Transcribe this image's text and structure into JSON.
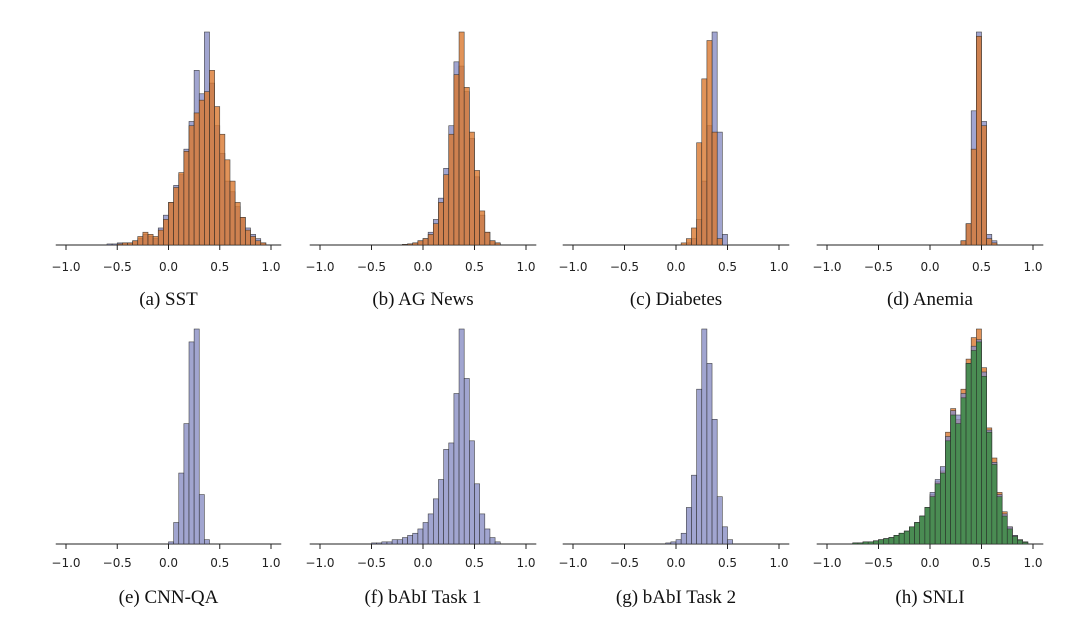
{
  "colors": {
    "blue": "#8a8fc4",
    "orange": "#d9782f",
    "green": "#3f8c47",
    "edge": "#2a2a2a"
  },
  "chart_data": [
    {
      "type": "histogram",
      "caption": "(a) SST",
      "xlim": [
        -1.1,
        1.1
      ],
      "xticks": [
        -1.0,
        -0.5,
        0.0,
        0.5,
        1.0
      ],
      "xtick_labels": [
        "−1.0",
        "−0.5",
        "0.0",
        "0.5",
        "1.0"
      ],
      "bin_width": 0.05,
      "series": [
        {
          "color": "blue",
          "x": [
            -0.6,
            -0.55,
            -0.5,
            -0.45,
            -0.4,
            -0.35,
            -0.3,
            -0.25,
            -0.2,
            -0.15,
            -0.1,
            -0.05,
            0.0,
            0.05,
            0.1,
            0.15,
            0.2,
            0.25,
            0.3,
            0.35,
            0.4,
            0.45,
            0.5,
            0.55,
            0.6,
            0.65,
            0.7,
            0.75,
            0.8,
            0.85,
            0.9
          ],
          "values": [
            0.005,
            0.005,
            0.01,
            0.01,
            0.01,
            0.02,
            0.03,
            0.05,
            0.04,
            0.03,
            0.08,
            0.14,
            0.2,
            0.28,
            0.33,
            0.45,
            0.58,
            0.82,
            0.71,
            1.0,
            0.76,
            0.56,
            0.43,
            0.3,
            0.25,
            0.18,
            0.13,
            0.08,
            0.05,
            0.03,
            0.01
          ]
        },
        {
          "color": "orange",
          "x": [
            -0.5,
            -0.45,
            -0.4,
            -0.35,
            -0.3,
            -0.25,
            -0.2,
            -0.15,
            -0.1,
            -0.05,
            0.0,
            0.05,
            0.1,
            0.15,
            0.2,
            0.25,
            0.3,
            0.35,
            0.4,
            0.45,
            0.5,
            0.55,
            0.6,
            0.65,
            0.7,
            0.75,
            0.8,
            0.85,
            0.9
          ],
          "values": [
            0.005,
            0.01,
            0.01,
            0.02,
            0.04,
            0.06,
            0.05,
            0.04,
            0.07,
            0.12,
            0.2,
            0.27,
            0.34,
            0.44,
            0.56,
            0.62,
            0.68,
            0.72,
            0.82,
            0.65,
            0.52,
            0.4,
            0.3,
            0.2,
            0.13,
            0.07,
            0.04,
            0.02,
            0.01
          ]
        }
      ]
    },
    {
      "type": "histogram",
      "caption": "(b) AG News",
      "xlim": [
        -1.1,
        1.1
      ],
      "xticks": [
        -1.0,
        -0.5,
        0.0,
        0.5,
        1.0
      ],
      "xtick_labels": [
        "−1.0",
        "−0.5",
        "0.0",
        "0.5",
        "1.0"
      ],
      "bin_width": 0.05,
      "series": [
        {
          "color": "blue",
          "x": [
            -0.2,
            -0.15,
            -0.1,
            -0.05,
            0.0,
            0.05,
            0.1,
            0.15,
            0.2,
            0.25,
            0.3,
            0.35,
            0.4,
            0.45,
            0.5,
            0.55,
            0.6,
            0.65,
            0.7
          ],
          "values": [
            0.003,
            0.005,
            0.01,
            0.02,
            0.03,
            0.06,
            0.12,
            0.22,
            0.36,
            0.56,
            0.86,
            0.84,
            0.72,
            0.5,
            0.32,
            0.14,
            0.06,
            0.02,
            0.01
          ]
        },
        {
          "color": "orange",
          "x": [
            -0.2,
            -0.15,
            -0.1,
            -0.05,
            0.0,
            0.05,
            0.1,
            0.15,
            0.2,
            0.25,
            0.3,
            0.35,
            0.4,
            0.45,
            0.5,
            0.55,
            0.6,
            0.65,
            0.7
          ],
          "values": [
            0.003,
            0.005,
            0.01,
            0.02,
            0.03,
            0.05,
            0.1,
            0.2,
            0.33,
            0.52,
            0.8,
            1.0,
            0.74,
            0.53,
            0.35,
            0.16,
            0.06,
            0.02,
            0.01
          ]
        }
      ]
    },
    {
      "type": "histogram",
      "caption": "(c) Diabetes",
      "xlim": [
        -1.1,
        1.1
      ],
      "xticks": [
        -1.0,
        -0.5,
        0.0,
        0.5,
        1.0
      ],
      "xtick_labels": [
        "−1.0",
        "−0.5",
        "0.0",
        "0.5",
        "1.0"
      ],
      "bin_width": 0.05,
      "series": [
        {
          "color": "blue",
          "x": [
            0.1,
            0.15,
            0.2,
            0.25,
            0.3,
            0.35,
            0.4,
            0.45
          ],
          "values": [
            0.01,
            0.03,
            0.12,
            0.3,
            0.56,
            1.0,
            0.53,
            0.05
          ]
        },
        {
          "color": "orange",
          "x": [
            0.05,
            0.1,
            0.15,
            0.2,
            0.25,
            0.3,
            0.35,
            0.4
          ],
          "values": [
            0.01,
            0.03,
            0.08,
            0.48,
            0.78,
            0.96,
            0.53,
            0.03
          ]
        }
      ]
    },
    {
      "type": "histogram",
      "caption": "(d) Anemia",
      "xlim": [
        -1.1,
        1.1
      ],
      "xticks": [
        -1.0,
        -0.5,
        0.0,
        0.5,
        1.0
      ],
      "xtick_labels": [
        "−1.0",
        "−0.5",
        "0.0",
        "0.5",
        "1.0"
      ],
      "bin_width": 0.05,
      "series": [
        {
          "color": "blue",
          "x": [
            0.3,
            0.35,
            0.4,
            0.45,
            0.5,
            0.55,
            0.6
          ],
          "values": [
            0.02,
            0.1,
            0.63,
            1.0,
            0.58,
            0.05,
            0.02
          ]
        },
        {
          "color": "orange",
          "x": [
            0.3,
            0.35,
            0.4,
            0.45,
            0.5,
            0.55,
            0.6
          ],
          "values": [
            0.02,
            0.1,
            0.45,
            0.98,
            0.56,
            0.03,
            0.01
          ]
        }
      ]
    },
    {
      "type": "histogram",
      "caption": "(e) CNN-QA",
      "xlim": [
        -1.1,
        1.1
      ],
      "xticks": [
        -1.0,
        -0.5,
        0.0,
        0.5,
        1.0
      ],
      "xtick_labels": [
        "−1.0",
        "−0.5",
        "0.0",
        "0.5",
        "1.0"
      ],
      "bin_width": 0.05,
      "series": [
        {
          "color": "blue",
          "x": [
            0.0,
            0.05,
            0.1,
            0.15,
            0.2,
            0.25,
            0.3,
            0.35
          ],
          "values": [
            0.01,
            0.1,
            0.33,
            0.56,
            0.94,
            1.0,
            0.23,
            0.02
          ]
        }
      ]
    },
    {
      "type": "histogram",
      "caption": "(f) bAbI Task 1",
      "xlim": [
        -1.1,
        1.1
      ],
      "xticks": [
        -1.0,
        -0.5,
        0.0,
        0.5,
        1.0
      ],
      "xtick_labels": [
        "−1.0",
        "−0.5",
        "0.0",
        "0.5",
        "1.0"
      ],
      "bin_width": 0.05,
      "series": [
        {
          "color": "blue",
          "x": [
            -0.5,
            -0.45,
            -0.4,
            -0.35,
            -0.3,
            -0.25,
            -0.2,
            -0.15,
            -0.1,
            -0.05,
            0.0,
            0.05,
            0.1,
            0.15,
            0.2,
            0.25,
            0.3,
            0.35,
            0.4,
            0.45,
            0.5,
            0.55,
            0.6,
            0.65,
            0.7
          ],
          "values": [
            0.005,
            0.005,
            0.01,
            0.01,
            0.02,
            0.02,
            0.03,
            0.04,
            0.05,
            0.07,
            0.1,
            0.14,
            0.21,
            0.3,
            0.44,
            0.47,
            0.7,
            1.0,
            0.77,
            0.48,
            0.28,
            0.14,
            0.07,
            0.03,
            0.01
          ]
        }
      ]
    },
    {
      "type": "histogram",
      "caption": "(g) bAbI Task 2",
      "xlim": [
        -1.1,
        1.1
      ],
      "xticks": [
        -1.0,
        -0.5,
        0.0,
        0.5,
        1.0
      ],
      "xtick_labels": [
        "−1.0",
        "−0.5",
        "0.0",
        "0.5",
        "1.0"
      ],
      "bin_width": 0.05,
      "series": [
        {
          "color": "blue",
          "x": [
            -0.1,
            -0.05,
            0.0,
            0.05,
            0.1,
            0.15,
            0.2,
            0.25,
            0.3,
            0.35,
            0.4,
            0.45,
            0.5
          ],
          "values": [
            0.005,
            0.01,
            0.02,
            0.05,
            0.17,
            0.32,
            0.72,
            1.0,
            0.84,
            0.58,
            0.22,
            0.08,
            0.02
          ]
        }
      ]
    },
    {
      "type": "histogram",
      "caption": "(h) SNLI",
      "xlim": [
        -1.1,
        1.1
      ],
      "xticks": [
        -1.0,
        -0.5,
        0.0,
        0.5,
        1.0
      ],
      "xtick_labels": [
        "−1.0",
        "−0.5",
        "0.0",
        "0.5",
        "1.0"
      ],
      "bin_width": 0.05,
      "series": [
        {
          "color": "orange",
          "x": [
            -0.75,
            -0.7,
            -0.65,
            -0.6,
            -0.55,
            -0.5,
            -0.45,
            -0.4,
            -0.35,
            -0.3,
            -0.25,
            -0.2,
            -0.15,
            -0.1,
            -0.05,
            0.0,
            0.05,
            0.1,
            0.15,
            0.2,
            0.25,
            0.3,
            0.35,
            0.4,
            0.45,
            0.5,
            0.55,
            0.6,
            0.65,
            0.7,
            0.75,
            0.8,
            0.85,
            0.9
          ],
          "values": [
            0.005,
            0.005,
            0.01,
            0.01,
            0.015,
            0.02,
            0.025,
            0.03,
            0.04,
            0.05,
            0.06,
            0.08,
            0.1,
            0.13,
            0.17,
            0.23,
            0.29,
            0.34,
            0.52,
            0.63,
            0.58,
            0.72,
            0.86,
            0.96,
            1.0,
            0.82,
            0.54,
            0.4,
            0.24,
            0.15,
            0.08,
            0.04,
            0.02,
            0.01
          ]
        },
        {
          "color": "blue",
          "x": [
            -0.75,
            -0.7,
            -0.65,
            -0.6,
            -0.55,
            -0.5,
            -0.45,
            -0.4,
            -0.35,
            -0.3,
            -0.25,
            -0.2,
            -0.15,
            -0.1,
            -0.05,
            0.0,
            0.05,
            0.1,
            0.15,
            0.2,
            0.25,
            0.3,
            0.35,
            0.4,
            0.45,
            0.5,
            0.55,
            0.6,
            0.65,
            0.7,
            0.75,
            0.8,
            0.85,
            0.9
          ],
          "values": [
            0.005,
            0.005,
            0.01,
            0.01,
            0.015,
            0.02,
            0.025,
            0.03,
            0.04,
            0.05,
            0.06,
            0.08,
            0.1,
            0.13,
            0.17,
            0.24,
            0.3,
            0.36,
            0.5,
            0.62,
            0.6,
            0.7,
            0.84,
            0.92,
            0.95,
            0.8,
            0.53,
            0.38,
            0.23,
            0.14,
            0.08,
            0.04,
            0.02,
            0.01
          ]
        },
        {
          "color": "green",
          "x": [
            -0.75,
            -0.7,
            -0.65,
            -0.6,
            -0.55,
            -0.5,
            -0.45,
            -0.4,
            -0.35,
            -0.3,
            -0.25,
            -0.2,
            -0.15,
            -0.1,
            -0.05,
            0.0,
            0.05,
            0.1,
            0.15,
            0.2,
            0.25,
            0.3,
            0.35,
            0.4,
            0.45,
            0.5,
            0.55,
            0.6,
            0.65,
            0.7,
            0.75,
            0.8,
            0.85,
            0.9
          ],
          "values": [
            0.005,
            0.005,
            0.01,
            0.01,
            0.015,
            0.02,
            0.025,
            0.03,
            0.04,
            0.05,
            0.06,
            0.08,
            0.1,
            0.13,
            0.17,
            0.22,
            0.28,
            0.33,
            0.48,
            0.6,
            0.56,
            0.68,
            0.84,
            0.9,
            0.94,
            0.78,
            0.52,
            0.37,
            0.22,
            0.13,
            0.07,
            0.035,
            0.018,
            0.008
          ]
        }
      ]
    }
  ]
}
